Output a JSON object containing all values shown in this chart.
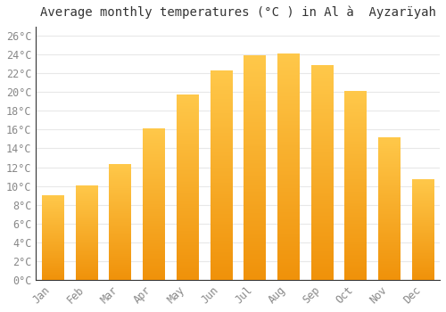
{
  "title": "Average monthly temperatures (°C ) in Al à  Ayzarïyah",
  "months": [
    "Jan",
    "Feb",
    "Mar",
    "Apr",
    "May",
    "Jun",
    "Jul",
    "Aug",
    "Sep",
    "Oct",
    "Nov",
    "Dec"
  ],
  "values": [
    9,
    10,
    12.3,
    16.1,
    19.7,
    22.3,
    23.9,
    24.1,
    22.8,
    20.1,
    15.1,
    10.7
  ],
  "bar_color_top": "#FFC84A",
  "bar_color_bottom": "#F0920A",
  "ylim": [
    0,
    27
  ],
  "yticks": [
    0,
    2,
    4,
    6,
    8,
    10,
    12,
    14,
    16,
    18,
    20,
    22,
    24,
    26
  ],
  "background_color": "#ffffff",
  "grid_color": "#e8e8e8",
  "title_fontsize": 10,
  "tick_fontsize": 8.5,
  "tick_color": "#888888",
  "axis_color": "#333333"
}
